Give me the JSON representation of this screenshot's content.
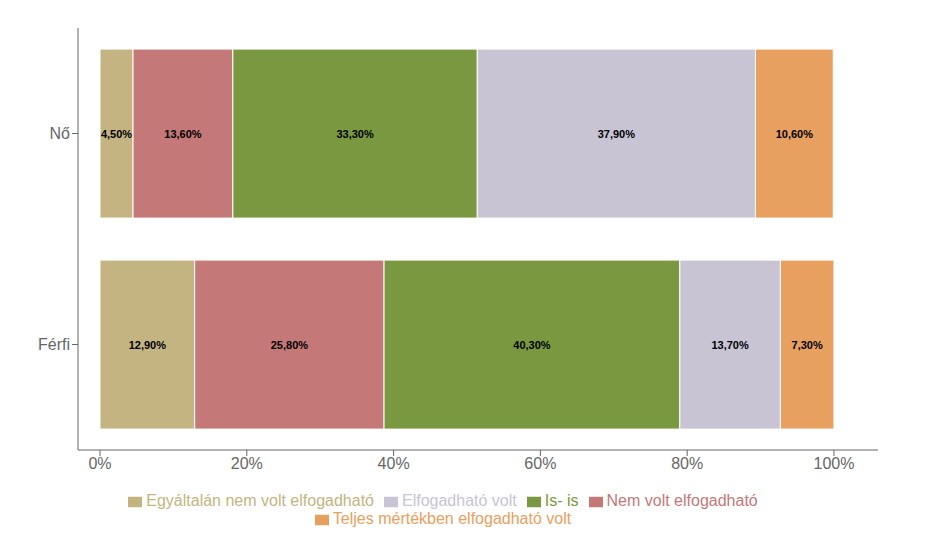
{
  "chart_data": {
    "type": "bar",
    "orientation": "horizontal",
    "stacked": true,
    "categories": [
      "Nő",
      "Férfi"
    ],
    "series": [
      {
        "name": "Egyáltalán nem volt elfogadható",
        "color": "#C4B482",
        "values": [
          4.5,
          12.9
        ],
        "value_labels": [
          "4,50%",
          "12,90%"
        ]
      },
      {
        "name": "Nem volt elfogadható",
        "color": "#C47878",
        "values": [
          13.6,
          25.8
        ],
        "value_labels": [
          "13,60%",
          "25,80%"
        ]
      },
      {
        "name": "Is- is",
        "color": "#7A9840",
        "values": [
          33.3,
          40.3
        ],
        "value_labels": [
          "33,30%",
          "40,30%"
        ]
      },
      {
        "name": "Elfogadható volt",
        "color": "#C8C4D4",
        "values": [
          37.9,
          13.7
        ],
        "value_labels": [
          "37,90%",
          "13,70%"
        ]
      },
      {
        "name": "Teljes mértékben elfogadható volt",
        "color": "#E8A060",
        "values": [
          10.6,
          7.3
        ],
        "value_labels": [
          "10,60%",
          "7,30%"
        ]
      }
    ],
    "xlim": [
      -3,
      106
    ],
    "xticks": [
      {
        "value": 0,
        "label": "0%"
      },
      {
        "value": 20,
        "label": "20%"
      },
      {
        "value": 40,
        "label": "40%"
      },
      {
        "value": 60,
        "label": "60%"
      },
      {
        "value": 80,
        "label": "80%"
      },
      {
        "value": 100,
        "label": "100%"
      }
    ],
    "grid": false,
    "legend": "bottom",
    "data_labels": true
  }
}
